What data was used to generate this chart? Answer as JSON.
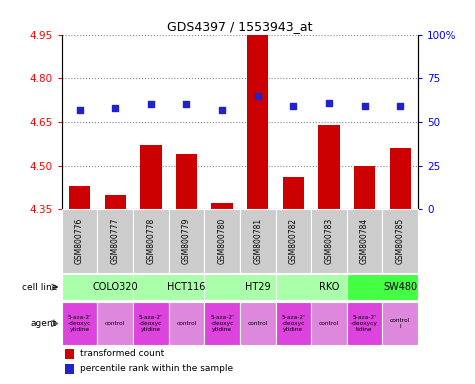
{
  "title": "GDS4397 / 1553943_at",
  "samples": [
    "GSM800776",
    "GSM800777",
    "GSM800778",
    "GSM800779",
    "GSM800780",
    "GSM800781",
    "GSM800782",
    "GSM800783",
    "GSM800784",
    "GSM800785"
  ],
  "bar_values": [
    4.43,
    4.4,
    4.57,
    4.54,
    4.37,
    4.95,
    4.46,
    4.64,
    4.5,
    4.56
  ],
  "dot_values": [
    57,
    58,
    60,
    60,
    57,
    65,
    59,
    61,
    59,
    59
  ],
  "ylim_left": [
    4.35,
    4.95
  ],
  "ylim_right": [
    0,
    100
  ],
  "yticks_left": [
    4.35,
    4.5,
    4.65,
    4.8,
    4.95
  ],
  "yticks_right": [
    0,
    25,
    50,
    75,
    100
  ],
  "bar_color": "#cc0000",
  "dot_color": "#2222cc",
  "cell_lines": [
    {
      "label": "COLO320",
      "start": 0,
      "end": 2,
      "color": "#aaffaa"
    },
    {
      "label": "HCT116",
      "start": 2,
      "end": 4,
      "color": "#aaffaa"
    },
    {
      "label": "HT29",
      "start": 4,
      "end": 6,
      "color": "#aaffaa"
    },
    {
      "label": "RKO",
      "start": 6,
      "end": 8,
      "color": "#aaffaa"
    },
    {
      "label": "SW480",
      "start": 8,
      "end": 10,
      "color": "#44ff44"
    }
  ],
  "agents": [
    {
      "label": "5-aza-2'\n-deoxyc\nytidine",
      "color": "#dd44dd"
    },
    {
      "label": "control",
      "color": "#dd88dd"
    },
    {
      "label": "5-aza-2'\n-deoxyc\nytidine",
      "color": "#dd44dd"
    },
    {
      "label": "control",
      "color": "#dd88dd"
    },
    {
      "label": "5-aza-2'\n-deoxyc\nytidine",
      "color": "#dd44dd"
    },
    {
      "label": "control",
      "color": "#dd88dd"
    },
    {
      "label": "5-aza-2'\n-deoxyc\nytidine",
      "color": "#dd44dd"
    },
    {
      "label": "control",
      "color": "#dd88dd"
    },
    {
      "label": "5-aza-2'\n-deoxycy\ntidine",
      "color": "#dd44dd"
    },
    {
      "label": "control\nl",
      "color": "#dd88dd"
    }
  ],
  "grid_color": "#888888",
  "bg_color": "#ffffff",
  "sample_bg": "#cccccc",
  "bar_baseline": 4.35
}
